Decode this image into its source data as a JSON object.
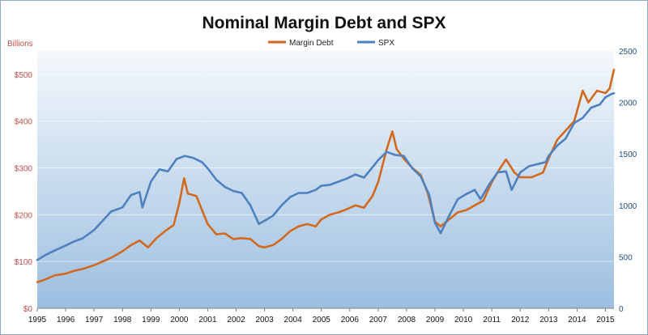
{
  "chart_data": {
    "type": "line",
    "title": "Nominal Margin Debt and SPX",
    "y_left_unit": "Billions",
    "y_left": {
      "ticks": [
        "$0",
        "$100",
        "$200",
        "$300",
        "$400",
        "$500"
      ],
      "ylim": [
        0,
        550
      ]
    },
    "y_right": {
      "ticks": [
        "0",
        "500",
        "1000",
        "1500",
        "2000",
        "2500"
      ],
      "ylim": [
        0,
        2500
      ]
    },
    "x_ticks": [
      "1995",
      "1996",
      "1997",
      "1998",
      "1999",
      "2000",
      "2001",
      "2002",
      "2003",
      "2004",
      "2005",
      "2006",
      "2007",
      "2008",
      "2009",
      "2010",
      "2011",
      "2012",
      "2013",
      "2014",
      "2015"
    ],
    "xlim": [
      1995,
      2015.3
    ],
    "grid": true,
    "legend_position": "top-center",
    "colors": {
      "margin_debt": "#d2691e",
      "spx": "#4f81bd",
      "left_axis_text": "#c0504d",
      "right_axis_text": "#1f4e79"
    },
    "series": [
      {
        "name": "Margin Debt",
        "axis": "left",
        "color": "#d2691e",
        "points": [
          [
            1995.0,
            56
          ],
          [
            1995.3,
            62
          ],
          [
            1995.6,
            70
          ],
          [
            1996.0,
            74
          ],
          [
            1996.3,
            80
          ],
          [
            1996.6,
            84
          ],
          [
            1997.0,
            92
          ],
          [
            1997.3,
            100
          ],
          [
            1997.6,
            108
          ],
          [
            1998.0,
            122
          ],
          [
            1998.3,
            135
          ],
          [
            1998.6,
            145
          ],
          [
            1998.9,
            130
          ],
          [
            1999.2,
            150
          ],
          [
            1999.5,
            165
          ],
          [
            1999.8,
            178
          ],
          [
            2000.0,
            225
          ],
          [
            2000.17,
            278
          ],
          [
            2000.3,
            245
          ],
          [
            2000.6,
            240
          ],
          [
            2000.8,
            210
          ],
          [
            2001.0,
            180
          ],
          [
            2001.3,
            158
          ],
          [
            2001.6,
            160
          ],
          [
            2001.9,
            148
          ],
          [
            2002.2,
            150
          ],
          [
            2002.5,
            148
          ],
          [
            2002.8,
            133
          ],
          [
            2003.0,
            130
          ],
          [
            2003.3,
            135
          ],
          [
            2003.6,
            148
          ],
          [
            2003.9,
            165
          ],
          [
            2004.2,
            175
          ],
          [
            2004.5,
            180
          ],
          [
            2004.8,
            175
          ],
          [
            2005.0,
            190
          ],
          [
            2005.3,
            200
          ],
          [
            2005.6,
            205
          ],
          [
            2005.9,
            212
          ],
          [
            2006.2,
            220
          ],
          [
            2006.5,
            215
          ],
          [
            2006.8,
            240
          ],
          [
            2007.0,
            270
          ],
          [
            2007.3,
            340
          ],
          [
            2007.5,
            378
          ],
          [
            2007.65,
            340
          ],
          [
            2007.9,
            320
          ],
          [
            2008.2,
            300
          ],
          [
            2008.5,
            285
          ],
          [
            2008.75,
            245
          ],
          [
            2009.0,
            185
          ],
          [
            2009.2,
            175
          ],
          [
            2009.5,
            190
          ],
          [
            2009.8,
            205
          ],
          [
            2010.1,
            210
          ],
          [
            2010.4,
            220
          ],
          [
            2010.7,
            230
          ],
          [
            2011.0,
            270
          ],
          [
            2011.3,
            300
          ],
          [
            2011.5,
            318
          ],
          [
            2011.8,
            290
          ],
          [
            2012.0,
            280
          ],
          [
            2012.4,
            280
          ],
          [
            2012.8,
            290
          ],
          [
            2013.0,
            320
          ],
          [
            2013.3,
            360
          ],
          [
            2013.6,
            380
          ],
          [
            2013.9,
            400
          ],
          [
            2014.2,
            465
          ],
          [
            2014.4,
            440
          ],
          [
            2014.7,
            465
          ],
          [
            2015.0,
            460
          ],
          [
            2015.15,
            470
          ],
          [
            2015.3,
            510
          ]
        ]
      },
      {
        "name": "SPX",
        "axis": "right",
        "color": "#4f81bd",
        "points": [
          [
            1995.0,
            470
          ],
          [
            1995.3,
            520
          ],
          [
            1995.6,
            560
          ],
          [
            1996.0,
            610
          ],
          [
            1996.3,
            650
          ],
          [
            1996.6,
            680
          ],
          [
            1997.0,
            760
          ],
          [
            1997.3,
            850
          ],
          [
            1997.6,
            940
          ],
          [
            1998.0,
            980
          ],
          [
            1998.3,
            1100
          ],
          [
            1998.6,
            1130
          ],
          [
            1998.7,
            980
          ],
          [
            1999.0,
            1230
          ],
          [
            1999.3,
            1350
          ],
          [
            1999.6,
            1330
          ],
          [
            1999.9,
            1450
          ],
          [
            2000.2,
            1480
          ],
          [
            2000.5,
            1460
          ],
          [
            2000.8,
            1420
          ],
          [
            2001.0,
            1360
          ],
          [
            2001.3,
            1250
          ],
          [
            2001.6,
            1180
          ],
          [
            2001.9,
            1140
          ],
          [
            2002.2,
            1120
          ],
          [
            2002.5,
            1000
          ],
          [
            2002.8,
            820
          ],
          [
            2003.0,
            850
          ],
          [
            2003.3,
            900
          ],
          [
            2003.6,
            1000
          ],
          [
            2003.9,
            1080
          ],
          [
            2004.2,
            1120
          ],
          [
            2004.5,
            1120
          ],
          [
            2004.8,
            1150
          ],
          [
            2005.0,
            1190
          ],
          [
            2005.3,
            1200
          ],
          [
            2005.6,
            1230
          ],
          [
            2005.9,
            1260
          ],
          [
            2006.2,
            1300
          ],
          [
            2006.5,
            1270
          ],
          [
            2006.8,
            1370
          ],
          [
            2007.0,
            1440
          ],
          [
            2007.3,
            1520
          ],
          [
            2007.6,
            1490
          ],
          [
            2007.9,
            1480
          ],
          [
            2008.2,
            1360
          ],
          [
            2008.5,
            1280
          ],
          [
            2008.8,
            1100
          ],
          [
            2009.0,
            830
          ],
          [
            2009.2,
            730
          ],
          [
            2009.5,
            900
          ],
          [
            2009.8,
            1060
          ],
          [
            2010.1,
            1110
          ],
          [
            2010.4,
            1150
          ],
          [
            2010.6,
            1060
          ],
          [
            2010.9,
            1200
          ],
          [
            2011.2,
            1320
          ],
          [
            2011.5,
            1330
          ],
          [
            2011.7,
            1150
          ],
          [
            2012.0,
            1320
          ],
          [
            2012.3,
            1380
          ],
          [
            2012.6,
            1400
          ],
          [
            2012.9,
            1420
          ],
          [
            2013.0,
            1480
          ],
          [
            2013.3,
            1580
          ],
          [
            2013.6,
            1650
          ],
          [
            2013.9,
            1800
          ],
          [
            2014.2,
            1850
          ],
          [
            2014.5,
            1950
          ],
          [
            2014.8,
            1980
          ],
          [
            2015.0,
            2050
          ],
          [
            2015.2,
            2080
          ],
          [
            2015.3,
            2090
          ]
        ]
      }
    ]
  }
}
